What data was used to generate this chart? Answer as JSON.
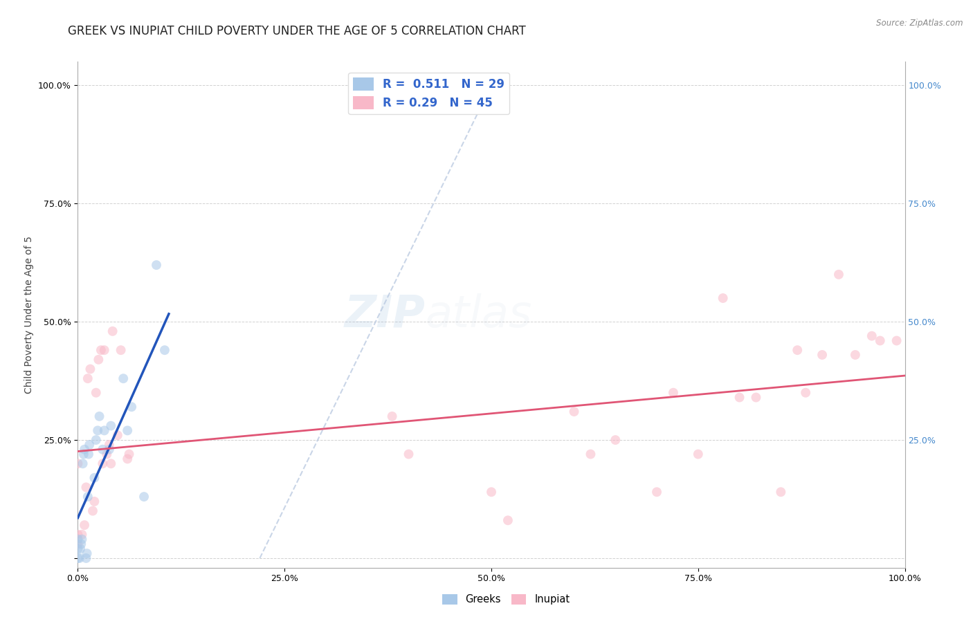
{
  "title": "GREEK VS INUPIAT CHILD POVERTY UNDER THE AGE OF 5 CORRELATION CHART",
  "source": "Source: ZipAtlas.com",
  "ylabel": "Child Poverty Under the Age of 5",
  "watermark_zip": "ZIP",
  "watermark_atlas": "atlas",
  "background_color": "#ffffff",
  "greeks_color": "#a8c8e8",
  "inupiat_color": "#f8b8c8",
  "greeks_line_color": "#2255bb",
  "inupiat_line_color": "#e05575",
  "diagonal_color": "#b8c8e0",
  "grid_color": "#cccccc",
  "right_tick_color": "#4488cc",
  "R_greeks": 0.511,
  "N_greeks": 29,
  "R_inupiat": 0.29,
  "N_inupiat": 45,
  "greeks_x": [
    0.0,
    0.0,
    0.0,
    0.002,
    0.003,
    0.004,
    0.005,
    0.006,
    0.007,
    0.008,
    0.01,
    0.011,
    0.012,
    0.013,
    0.014,
    0.02,
    0.022,
    0.024,
    0.026,
    0.03,
    0.032,
    0.038,
    0.04,
    0.055,
    0.06,
    0.065,
    0.08,
    0.095,
    0.105
  ],
  "greeks_y": [
    0.0,
    0.02,
    0.04,
    0.0,
    0.02,
    0.03,
    0.04,
    0.2,
    0.22,
    0.23,
    0.0,
    0.01,
    0.13,
    0.22,
    0.24,
    0.17,
    0.25,
    0.27,
    0.3,
    0.23,
    0.27,
    0.23,
    0.28,
    0.38,
    0.27,
    0.32,
    0.13,
    0.62,
    0.44
  ],
  "inupiat_x": [
    0.0,
    0.0,
    0.0,
    0.005,
    0.008,
    0.01,
    0.012,
    0.015,
    0.018,
    0.02,
    0.022,
    0.025,
    0.028,
    0.03,
    0.032,
    0.035,
    0.038,
    0.04,
    0.042,
    0.048,
    0.052,
    0.06,
    0.062,
    0.38,
    0.4,
    0.5,
    0.52,
    0.6,
    0.62,
    0.65,
    0.7,
    0.72,
    0.75,
    0.78,
    0.8,
    0.82,
    0.85,
    0.87,
    0.88,
    0.9,
    0.92,
    0.94,
    0.96,
    0.97,
    0.99
  ],
  "inupiat_y": [
    0.03,
    0.05,
    0.2,
    0.05,
    0.07,
    0.15,
    0.38,
    0.4,
    0.1,
    0.12,
    0.35,
    0.42,
    0.44,
    0.2,
    0.44,
    0.22,
    0.24,
    0.2,
    0.48,
    0.26,
    0.44,
    0.21,
    0.22,
    0.3,
    0.22,
    0.14,
    0.08,
    0.31,
    0.22,
    0.25,
    0.14,
    0.35,
    0.22,
    0.55,
    0.34,
    0.34,
    0.14,
    0.44,
    0.35,
    0.43,
    0.6,
    0.43,
    0.47,
    0.46,
    0.46
  ],
  "xlim": [
    0.0,
    1.0
  ],
  "ylim": [
    -0.02,
    1.05
  ],
  "xtick_vals": [
    0.0,
    0.25,
    0.5,
    0.75,
    1.0
  ],
  "xtick_labels": [
    "0.0%",
    "25.0%",
    "50.0%",
    "75.0%",
    "100.0%"
  ],
  "ytick_vals": [
    0.0,
    0.25,
    0.5,
    0.75,
    1.0
  ],
  "ytick_labels": [
    "",
    "25.0%",
    "50.0%",
    "75.0%",
    "100.0%"
  ],
  "right_ytick_labels": [
    "",
    "25.0%",
    "50.0%",
    "75.0%",
    "100.0%"
  ],
  "marker_size": 100,
  "marker_alpha": 0.55,
  "title_fontsize": 12,
  "axis_label_fontsize": 10,
  "tick_fontsize": 9,
  "legend_fontsize": 12,
  "watermark_fontsize_zip": 46,
  "watermark_fontsize_atlas": 46,
  "watermark_alpha": 0.1,
  "watermark_color_zip": "#7ba8d4",
  "watermark_color_atlas": "#b8c8d8"
}
